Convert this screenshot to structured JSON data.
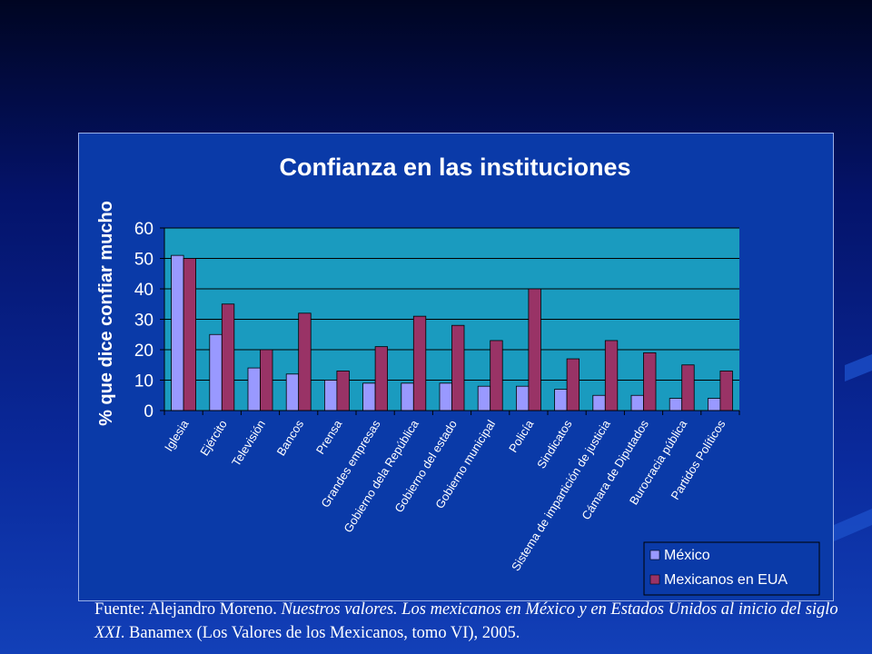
{
  "slide": {
    "background_colors": [
      "#000522",
      "#0a2a9c",
      "#1240b8"
    ]
  },
  "source": {
    "prefix": "Fuente: Alejandro Moreno. ",
    "title_italic": "Nuestros valores. Los mexicanos en México y en Estados Unidos al inicio del siglo XXI",
    "suffix": ". Banamex (Los Valores de los Mexicanos, tomo VI), 2005."
  },
  "chart_data": {
    "type": "bar",
    "title": "Confianza en las instituciones",
    "xlabel": "",
    "ylabel": "% que dice confiar mucho",
    "ylim": [
      0,
      60
    ],
    "yticks": [
      0,
      10,
      20,
      30,
      40,
      50,
      60
    ],
    "grid": true,
    "legend_position": "bottom-right",
    "categories": [
      "Iglesia",
      "Ejército",
      "Televisión",
      "Bancos",
      "Prensa",
      "Grandes empresas",
      "Gobierno dela República",
      "Gobierno del estado",
      "Gobierno municipal",
      "Policía",
      "Sindicatos",
      "Sistema de impartición de justicia",
      "Cámara de Diputados",
      "Burocracia pública",
      "Partidos Políticos"
    ],
    "series": [
      {
        "name": "México",
        "color": "#9999ff",
        "values": [
          51,
          25,
          14,
          12,
          10,
          9,
          9,
          9,
          8,
          8,
          7,
          5,
          5,
          4,
          4
        ]
      },
      {
        "name": "Mexicanos en EUA",
        "color": "#993366",
        "values": [
          50,
          35,
          20,
          32,
          13,
          21,
          31,
          28,
          23,
          40,
          17,
          23,
          19,
          15,
          13
        ]
      }
    ],
    "colors": {
      "plot_bg": "#1a9bbf",
      "panel_bg": "#0a3aa8",
      "text": "#ffffff",
      "axis": "#000000"
    }
  }
}
